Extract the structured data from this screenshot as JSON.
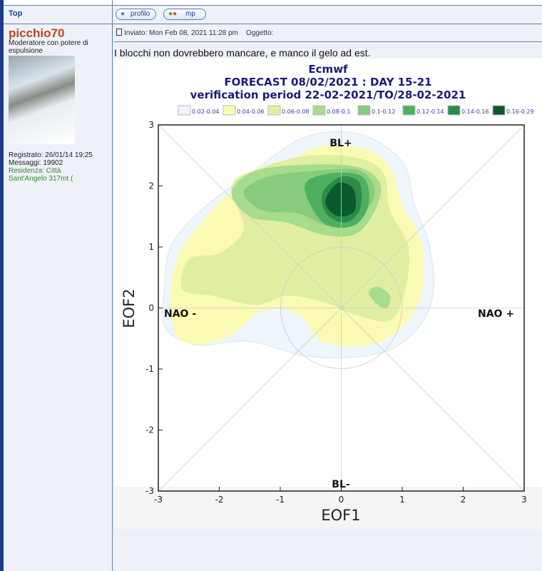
{
  "top_link": "Top",
  "buttons": {
    "profile": "profilo",
    "pm": "mp"
  },
  "user": {
    "name": "picchio70",
    "rank": "Moderatore con potere di espulsione",
    "registered": "Registrato: 26/01/14 19:25",
    "messages": "Messaggi: 19902",
    "residence": "Residenza: Città Sant'Angelo 317mt ("
  },
  "post": {
    "meta": "Inviato: Mon Feb 08, 2021 11:28 pm",
    "subject_label": "Oggetto:",
    "text": "I blocchi non dovrebbero mancare, e manco il gelo ad est."
  },
  "chart_data": {
    "type": "contour",
    "title": "Ecmwf",
    "subtitle1": "FORECAST 08/02/2021 : DAY 15-21",
    "subtitle2": "verification period 22-02-2021/TO/28-02-2021",
    "xlabel": "EOF1",
    "ylabel": "EOF2",
    "xlim": [
      -3,
      3
    ],
    "ylim": [
      -3,
      3
    ],
    "ticks": [
      -3,
      -2,
      -1,
      0,
      1,
      2,
      3
    ],
    "annotations": {
      "top": "BL+",
      "bottom": "BL-",
      "left": "NAO -",
      "right": "NAO +"
    },
    "legend": [
      {
        "label": "0.02-0.04",
        "color": "#eef5fb"
      },
      {
        "label": "0.04-0.06",
        "color": "#fafab4"
      },
      {
        "label": "0.06-0.08",
        "color": "#dfeea0"
      },
      {
        "label": "0.08-0.1",
        "color": "#a6dc8c"
      },
      {
        "label": "0.1-0.12",
        "color": "#86cc7c"
      },
      {
        "label": "0.12-0.14",
        "color": "#4cb060"
      },
      {
        "label": "0.14-0.16",
        "color": "#2a8c48"
      },
      {
        "label": "0.16-0.29",
        "color": "#0a5a2e"
      }
    ],
    "contours": [
      {
        "level": 0,
        "pts": [
          [
            -2.9,
            0.3
          ],
          [
            -2.8,
            1
          ],
          [
            -2.3,
            1.6
          ],
          [
            -1.5,
            2.2
          ],
          [
            -0.6,
            2.8
          ],
          [
            0.3,
            2.85
          ],
          [
            1.0,
            2.4
          ],
          [
            1.2,
            1.7
          ],
          [
            1.45,
            1.0
          ],
          [
            1.5,
            0.2
          ],
          [
            1.2,
            -0.4
          ],
          [
            0.6,
            -0.75
          ],
          [
            -0.5,
            -0.8
          ],
          [
            -1.5,
            -0.55
          ],
          [
            -2.4,
            -0.6
          ],
          [
            -2.9,
            -0.3
          ]
        ]
      },
      {
        "level": 1,
        "pts": [
          [
            -2.8,
            0.0
          ],
          [
            -2.7,
            0.8
          ],
          [
            -2.3,
            1.4
          ],
          [
            -1.8,
            1.9
          ],
          [
            -1.1,
            2.3
          ],
          [
            -0.3,
            2.65
          ],
          [
            0.4,
            2.6
          ],
          [
            0.8,
            2.3
          ],
          [
            1.0,
            1.7
          ],
          [
            1.3,
            1.1
          ],
          [
            1.35,
            0.4
          ],
          [
            1.1,
            -0.2
          ],
          [
            0.5,
            -0.6
          ],
          [
            -0.3,
            -0.55
          ],
          [
            -0.7,
            -0.1
          ],
          [
            -1.3,
            -0.05
          ],
          [
            -1.9,
            -0.5
          ],
          [
            -2.6,
            -0.55
          ]
        ]
      },
      {
        "level": 2,
        "pts": [
          [
            -2.6,
            0.3
          ],
          [
            -2.5,
            0.8
          ],
          [
            -2.0,
            0.9
          ],
          [
            -1.6,
            1.3
          ],
          [
            -1.8,
            2.0
          ],
          [
            -1.3,
            2.3
          ],
          [
            -0.5,
            2.5
          ],
          [
            0.3,
            2.45
          ],
          [
            0.7,
            2.2
          ],
          [
            0.8,
            1.6
          ],
          [
            1.1,
            1.0
          ],
          [
            1.05,
            0.3
          ],
          [
            0.8,
            -0.2
          ],
          [
            0.2,
            -0.1
          ],
          [
            -0.3,
            0.1
          ],
          [
            -0.9,
            0.2
          ],
          [
            -1.4,
            0.05
          ],
          [
            -2.1,
            0.2
          ]
        ]
      },
      {
        "level": 3,
        "pts": [
          [
            -1.8,
            1.9
          ],
          [
            -1.4,
            2.25
          ],
          [
            -0.5,
            2.35
          ],
          [
            0.3,
            2.3
          ],
          [
            0.65,
            2.0
          ],
          [
            0.5,
            1.5
          ],
          [
            0.2,
            1.2
          ],
          [
            -0.3,
            1.2
          ],
          [
            -0.9,
            1.4
          ],
          [
            -1.5,
            1.5
          ]
        ]
      },
      {
        "level": 3,
        "pts": [
          [
            0.45,
            0.25
          ],
          [
            0.6,
            0.35
          ],
          [
            0.8,
            0.2
          ],
          [
            0.75,
            0.0
          ],
          [
            0.6,
            0.05
          ]
        ]
      },
      {
        "level": 4,
        "pts": [
          [
            -1.6,
            1.9
          ],
          [
            -1.2,
            2.15
          ],
          [
            -0.4,
            2.25
          ],
          [
            0.3,
            2.25
          ],
          [
            0.55,
            1.9
          ],
          [
            0.3,
            1.5
          ],
          [
            -0.2,
            1.35
          ],
          [
            -0.7,
            1.55
          ],
          [
            -1.3,
            1.6
          ]
        ]
      },
      {
        "level": 5,
        "pts": [
          [
            -0.6,
            2.0
          ],
          [
            -0.2,
            2.2
          ],
          [
            0.35,
            2.15
          ],
          [
            0.45,
            1.7
          ],
          [
            0.2,
            1.35
          ],
          [
            -0.3,
            1.4
          ]
        ]
      },
      {
        "level": 6,
        "pts": [
          [
            -0.3,
            1.9
          ],
          [
            0.0,
            2.15
          ],
          [
            0.3,
            2.05
          ],
          [
            0.3,
            1.6
          ],
          [
            0.05,
            1.4
          ],
          [
            -0.25,
            1.55
          ]
        ]
      },
      {
        "level": 7,
        "pts": [
          [
            -0.25,
            1.8
          ],
          [
            -0.05,
            2.05
          ],
          [
            0.2,
            1.95
          ],
          [
            0.22,
            1.6
          ],
          [
            0,
            1.5
          ],
          [
            -0.2,
            1.6
          ]
        ]
      }
    ]
  }
}
